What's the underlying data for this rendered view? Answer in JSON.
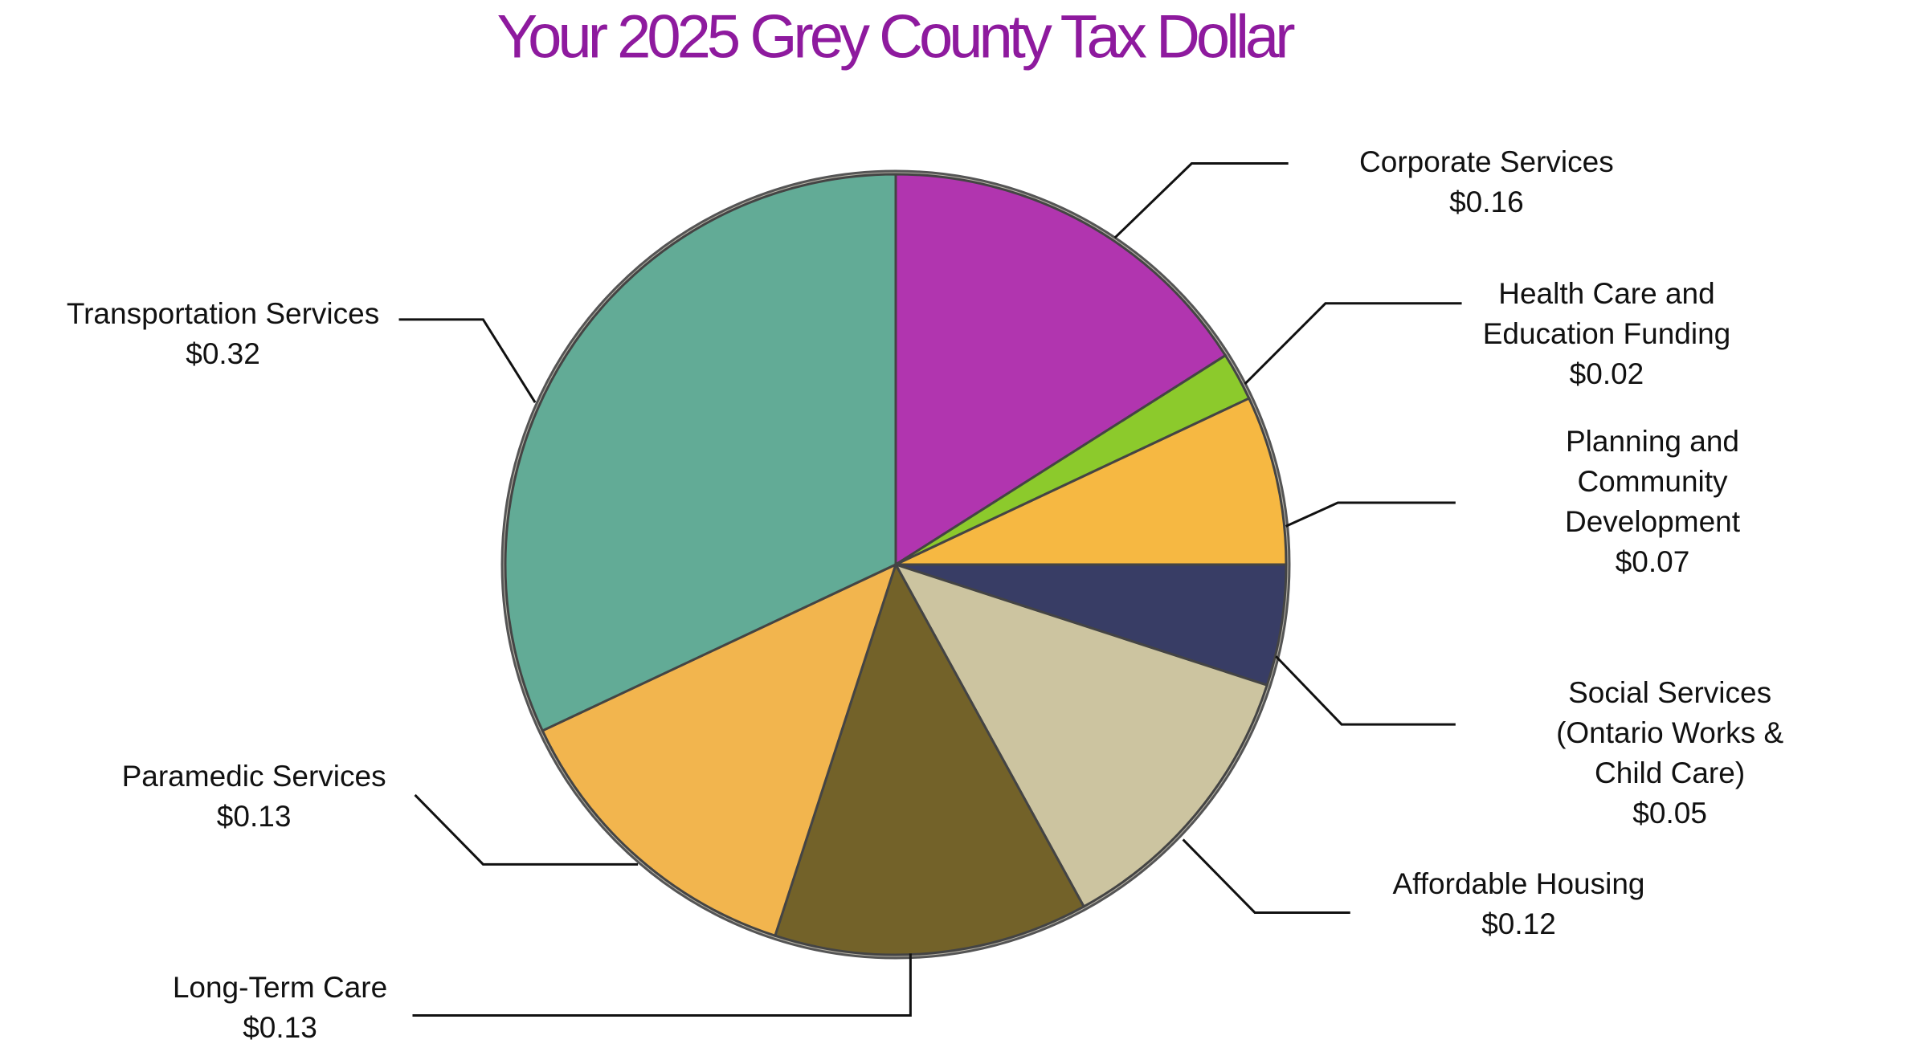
{
  "chart_data": {
    "type": "pie",
    "title": "Your 2025 Grey County Tax Dollar",
    "categories": [
      "Corporate Services",
      "Health Care and\nEducation Funding",
      "Planning and\nCommunity Development",
      "Social Services\n(Ontario Works & Child Care)",
      "Affordable Housing",
      "Long-Term Care",
      "Paramedic Services",
      "Transportation Services"
    ],
    "values": [
      0.16,
      0.02,
      0.07,
      0.05,
      0.12,
      0.13,
      0.13,
      0.32
    ],
    "value_labels": [
      "$0.16",
      "$0.02",
      "$0.07",
      "$0.05",
      "$0.12",
      "$0.13",
      "$0.13",
      "$0.32"
    ],
    "colors": [
      "#b02ab0",
      "#88cc22",
      "#fbb83a",
      "#2c3360",
      "#cdc5a0",
      "#6d5b1e",
      "#f6b546",
      "#5aaa95"
    ]
  }
}
